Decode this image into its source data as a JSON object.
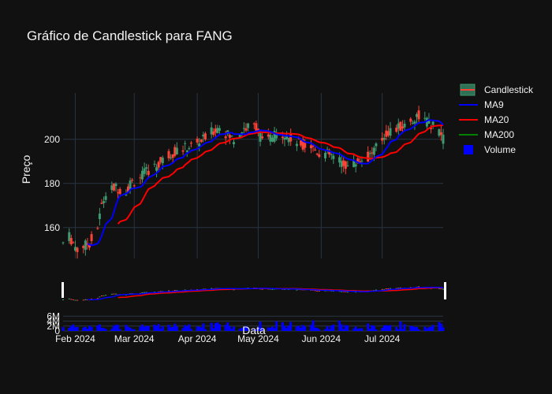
{
  "chart_data": {
    "type": "candlestick",
    "title": "Gráfico de Candlestick para FANG",
    "xlabel": "Data",
    "ylabel": "Preço",
    "x_range": [
      "2024-01-26",
      "2024-07-31"
    ],
    "y_range": [
      146,
      221
    ],
    "y_ticks": [
      160,
      180,
      200
    ],
    "x_ticks": [
      {
        "date": "2024-02-01",
        "label": "Feb 2024"
      },
      {
        "date": "2024-03-01",
        "label": "Mar 2024"
      },
      {
        "date": "2024-04-01",
        "label": "Apr 2024"
      },
      {
        "date": "2024-05-01",
        "label": "May 2024"
      },
      {
        "date": "2024-06-01",
        "label": "Jun 2024"
      },
      {
        "date": "2024-07-01",
        "label": "Jul 2024"
      }
    ],
    "volume_ticks": [
      {
        "value": 0,
        "label": "0"
      },
      {
        "value": 2000000,
        "label": "2M"
      },
      {
        "value": 4000000,
        "label": "4M"
      },
      {
        "value": 6000000,
        "label": "6M"
      }
    ],
    "volume_range": [
      0,
      8000000
    ],
    "grid": true,
    "rangeslider": true,
    "legend_position": "top-right",
    "legend": [
      {
        "key": "candle",
        "name": "Candlestick"
      },
      {
        "key": "ma9",
        "name": "MA9"
      },
      {
        "key": "ma20",
        "name": "MA20"
      },
      {
        "key": "ma200",
        "name": "MA200"
      },
      {
        "key": "volume",
        "name": "Volume"
      }
    ],
    "colors": {
      "increasing": "#3d9970",
      "decreasing": "#ff4136",
      "ma9": "#0000ff",
      "ma20": "#ff0000",
      "ma200": "#008000",
      "volume": "#0000ff",
      "grid": "#283442"
    },
    "price_anchors": [
      [
        "2024-01-26",
        153
      ],
      [
        "2024-01-29",
        156
      ],
      [
        "2024-01-31",
        153
      ],
      [
        "2024-02-02",
        150
      ],
      [
        "2024-02-06",
        152
      ],
      [
        "2024-02-08",
        153
      ],
      [
        "2024-02-12",
        160
      ],
      [
        "2024-02-14",
        170
      ],
      [
        "2024-02-16",
        175
      ],
      [
        "2024-02-20",
        178
      ],
      [
        "2024-02-22",
        178
      ],
      [
        "2024-02-26",
        176
      ],
      [
        "2024-02-28",
        180
      ],
      [
        "2024-03-04",
        183
      ],
      [
        "2024-03-08",
        186
      ],
      [
        "2024-03-12",
        188
      ],
      [
        "2024-03-18",
        193
      ],
      [
        "2024-03-22",
        195
      ],
      [
        "2024-03-26",
        196
      ],
      [
        "2024-04-01",
        198
      ],
      [
        "2024-04-04",
        200
      ],
      [
        "2024-04-08",
        203
      ],
      [
        "2024-04-12",
        206
      ],
      [
        "2024-04-16",
        202
      ],
      [
        "2024-04-19",
        200
      ],
      [
        "2024-04-24",
        205
      ],
      [
        "2024-04-30",
        206
      ],
      [
        "2024-05-03",
        199
      ],
      [
        "2024-05-08",
        201
      ],
      [
        "2024-05-13",
        203
      ],
      [
        "2024-05-17",
        200
      ],
      [
        "2024-05-22",
        198
      ],
      [
        "2024-05-27",
        197
      ],
      [
        "2024-05-31",
        194
      ],
      [
        "2024-06-05",
        193
      ],
      [
        "2024-06-10",
        190
      ],
      [
        "2024-06-14",
        188
      ],
      [
        "2024-06-19",
        190
      ],
      [
        "2024-06-24",
        192
      ],
      [
        "2024-06-28",
        196
      ],
      [
        "2024-07-03",
        203
      ],
      [
        "2024-07-09",
        205
      ],
      [
        "2024-07-15",
        208
      ],
      [
        "2024-07-19",
        211
      ],
      [
        "2024-07-24",
        207
      ],
      [
        "2024-07-29",
        204
      ],
      [
        "2024-07-31",
        200
      ]
    ]
  }
}
